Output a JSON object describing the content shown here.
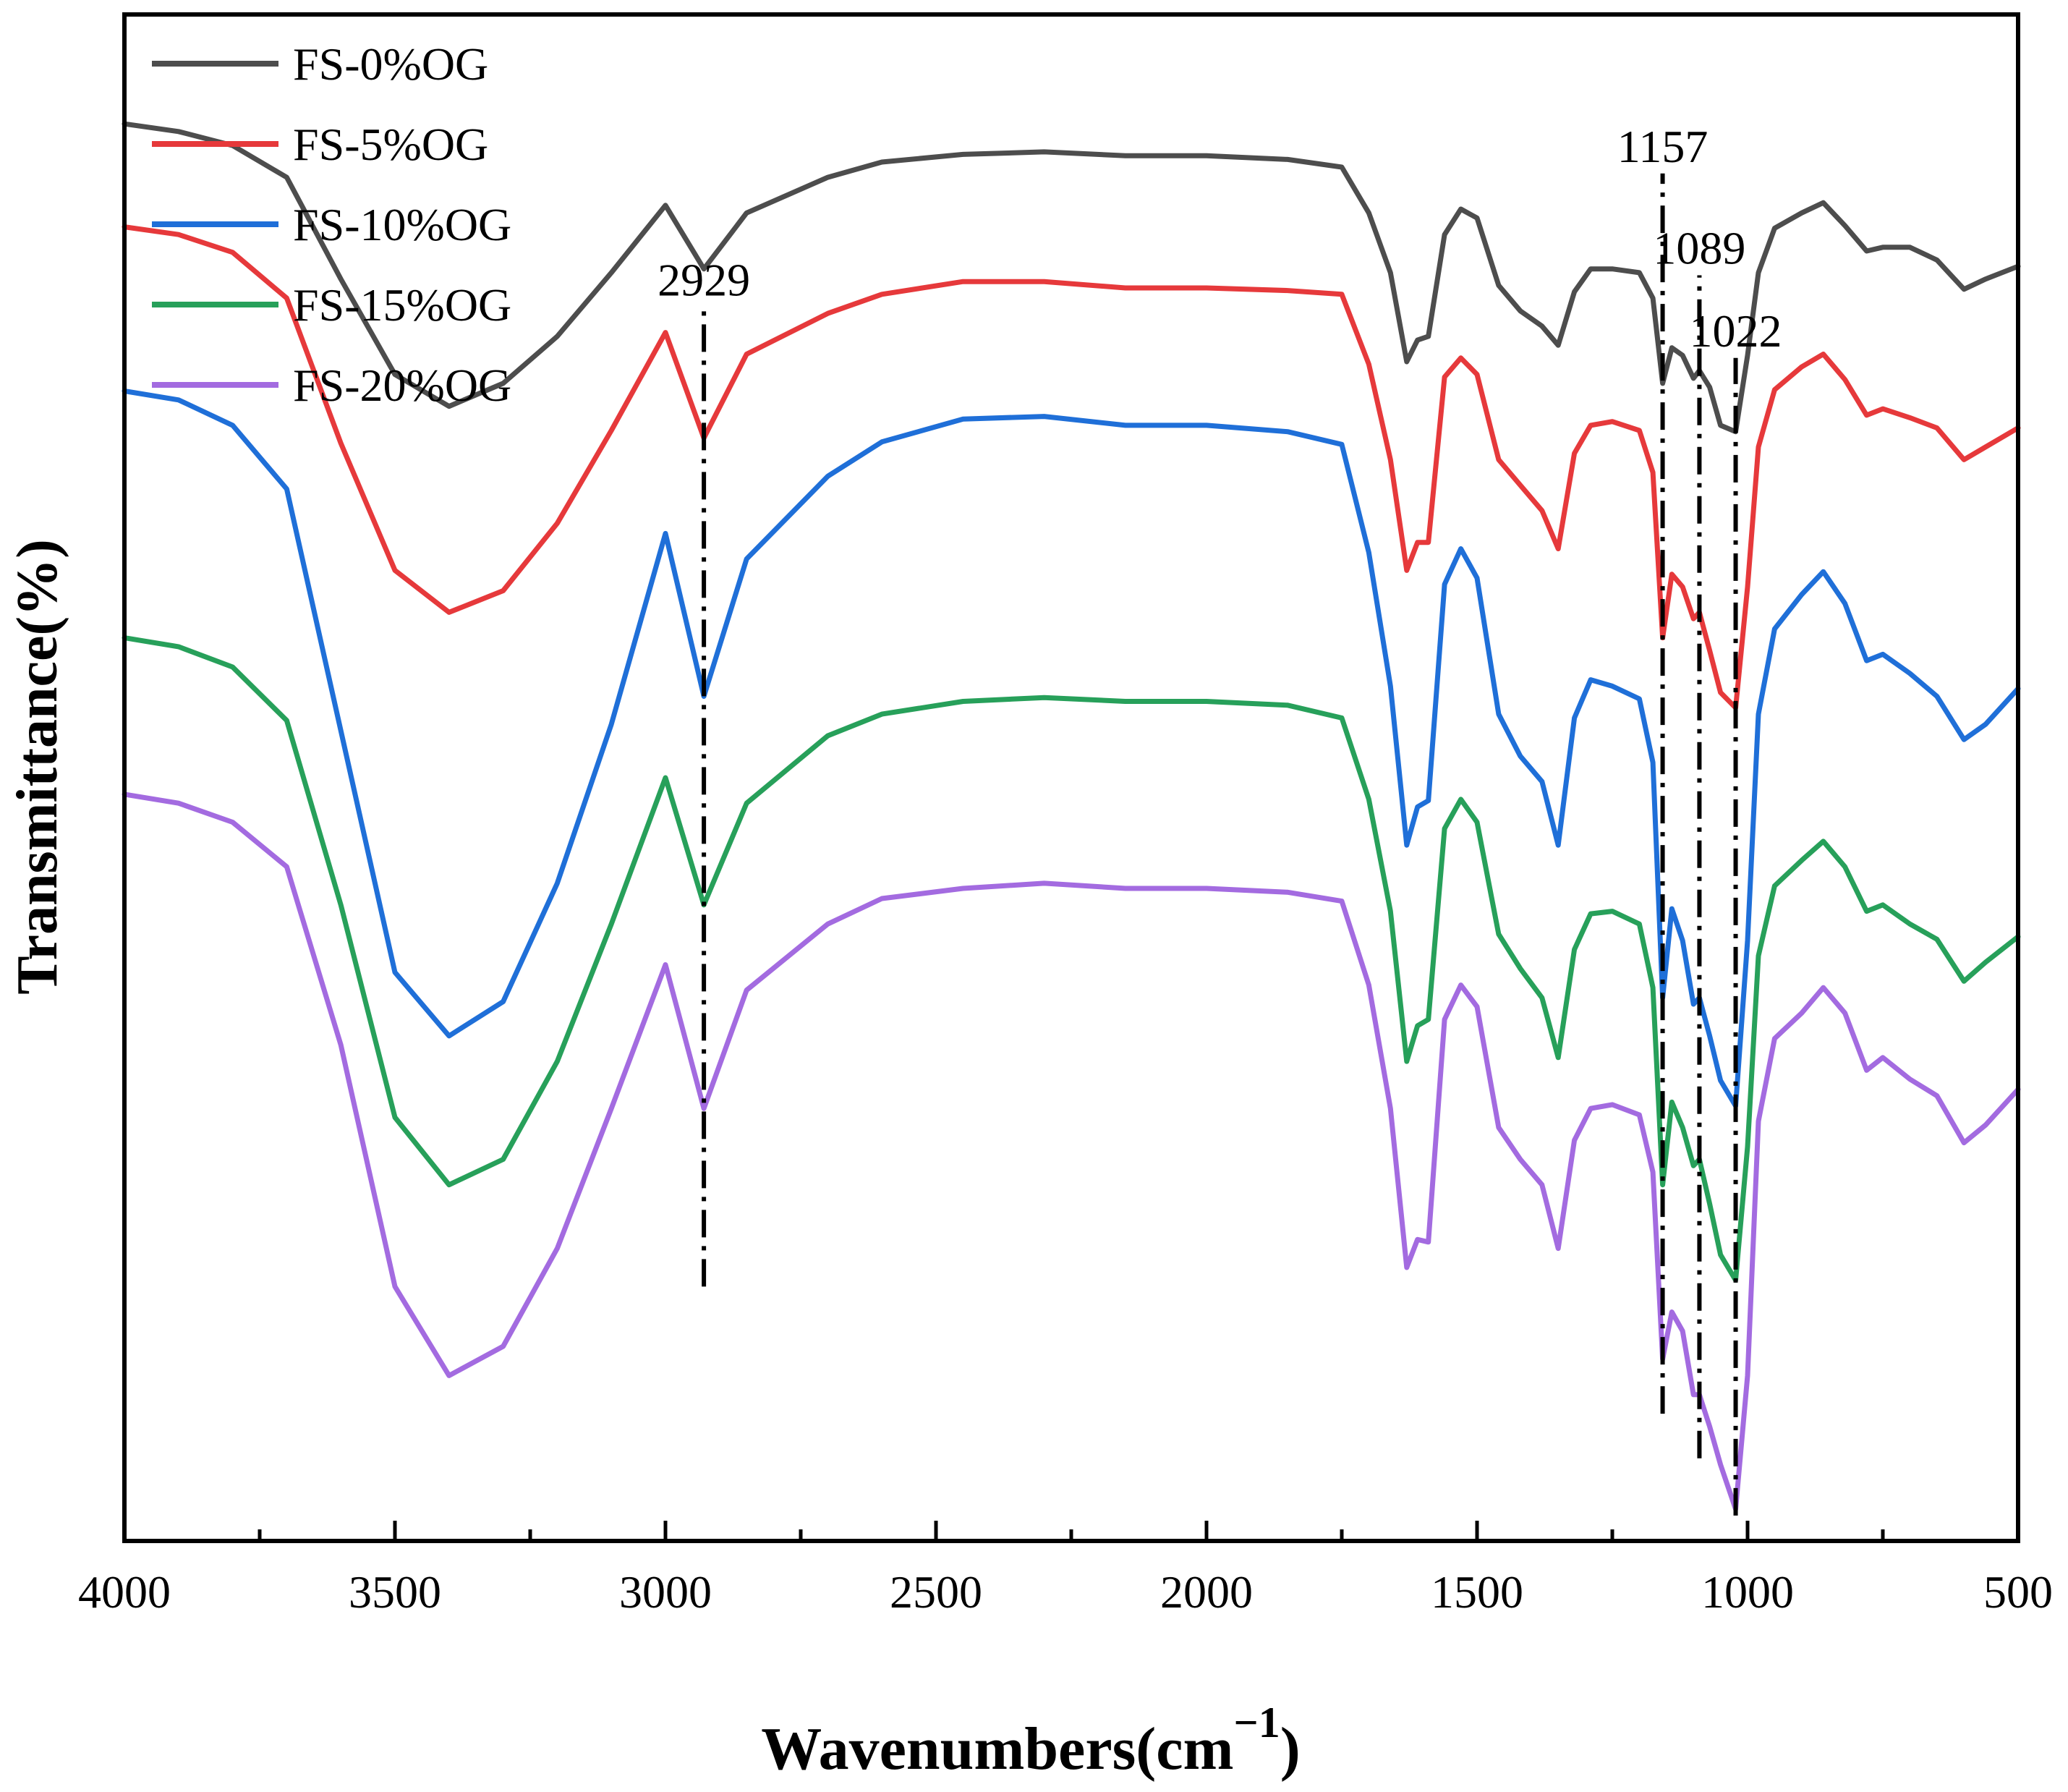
{
  "chart_data": {
    "type": "line",
    "xlabel": "Wavenumbers(cm",
    "xlabel_sup": "−1",
    "xlabel_close": ")",
    "ylabel": "Transmittance(%)",
    "xlim": [
      4000,
      500
    ],
    "x_reversed": true,
    "ylim": [
      0,
      12
    ],
    "x_major_ticks": [
      4000,
      3500,
      3000,
      2500,
      2000,
      1500,
      1000,
      500
    ],
    "x_minor_ticks": [
      3750,
      3250,
      2750,
      2250,
      1750,
      1250,
      750
    ],
    "y_ticks_shown": false,
    "grid": false,
    "legend_position": "top-left",
    "series": [
      {
        "name": "FS-0%OG",
        "color": "#4d4d4d",
        "offset": 8.72,
        "points": [
          [
            4000,
            2.42
          ],
          [
            3900,
            2.36
          ],
          [
            3800,
            2.25
          ],
          [
            3700,
            2.0
          ],
          [
            3600,
            1.2
          ],
          [
            3500,
            0.45
          ],
          [
            3400,
            0.2
          ],
          [
            3300,
            0.38
          ],
          [
            3200,
            0.75
          ],
          [
            3100,
            1.25
          ],
          [
            3000,
            1.78
          ],
          [
            2929,
            1.28
          ],
          [
            2850,
            1.72
          ],
          [
            2700,
            2.0
          ],
          [
            2600,
            2.12
          ],
          [
            2450,
            2.18
          ],
          [
            2300,
            2.2
          ],
          [
            2150,
            2.17
          ],
          [
            2000,
            2.17
          ],
          [
            1850,
            2.14
          ],
          [
            1750,
            2.08
          ],
          [
            1700,
            1.72
          ],
          [
            1660,
            1.25
          ],
          [
            1630,
            0.55
          ],
          [
            1610,
            0.72
          ],
          [
            1590,
            0.75
          ],
          [
            1560,
            1.55
          ],
          [
            1530,
            1.75
          ],
          [
            1500,
            1.68
          ],
          [
            1460,
            1.15
          ],
          [
            1420,
            0.95
          ],
          [
            1380,
            0.83
          ],
          [
            1350,
            0.68
          ],
          [
            1320,
            1.1
          ],
          [
            1290,
            1.28
          ],
          [
            1250,
            1.28
          ],
          [
            1200,
            1.25
          ],
          [
            1175,
            1.05
          ],
          [
            1157,
            0.38
          ],
          [
            1140,
            0.66
          ],
          [
            1120,
            0.6
          ],
          [
            1100,
            0.42
          ],
          [
            1089,
            0.48
          ],
          [
            1070,
            0.35
          ],
          [
            1050,
            0.05
          ],
          [
            1022,
            0.0
          ],
          [
            1000,
            0.6
          ],
          [
            980,
            1.25
          ],
          [
            950,
            1.6
          ],
          [
            900,
            1.72
          ],
          [
            860,
            1.8
          ],
          [
            820,
            1.62
          ],
          [
            780,
            1.42
          ],
          [
            750,
            1.45
          ],
          [
            700,
            1.45
          ],
          [
            650,
            1.35
          ],
          [
            600,
            1.12
          ],
          [
            560,
            1.2
          ],
          [
            500,
            1.3
          ]
        ]
      },
      {
        "name": "FS-5%OG",
        "color": "#e6393b",
        "offset": 6.55,
        "points": [
          [
            4000,
            3.78
          ],
          [
            3900,
            3.72
          ],
          [
            3800,
            3.58
          ],
          [
            3700,
            3.22
          ],
          [
            3600,
            2.08
          ],
          [
            3500,
            1.08
          ],
          [
            3400,
            0.75
          ],
          [
            3300,
            0.92
          ],
          [
            3200,
            1.45
          ],
          [
            3100,
            2.18
          ],
          [
            3000,
            2.95
          ],
          [
            2929,
            2.12
          ],
          [
            2850,
            2.78
          ],
          [
            2700,
            3.1
          ],
          [
            2600,
            3.25
          ],
          [
            2450,
            3.35
          ],
          [
            2300,
            3.35
          ],
          [
            2150,
            3.3
          ],
          [
            2000,
            3.3
          ],
          [
            1850,
            3.28
          ],
          [
            1750,
            3.25
          ],
          [
            1700,
            2.7
          ],
          [
            1660,
            1.95
          ],
          [
            1630,
            1.08
          ],
          [
            1610,
            1.3
          ],
          [
            1590,
            1.3
          ],
          [
            1560,
            2.6
          ],
          [
            1530,
            2.75
          ],
          [
            1500,
            2.62
          ],
          [
            1460,
            1.95
          ],
          [
            1420,
            1.75
          ],
          [
            1380,
            1.55
          ],
          [
            1350,
            1.25
          ],
          [
            1320,
            2.0
          ],
          [
            1290,
            2.22
          ],
          [
            1250,
            2.25
          ],
          [
            1200,
            2.18
          ],
          [
            1175,
            1.85
          ],
          [
            1157,
            0.55
          ],
          [
            1140,
            1.05
          ],
          [
            1120,
            0.95
          ],
          [
            1100,
            0.7
          ],
          [
            1089,
            0.75
          ],
          [
            1070,
            0.45
          ],
          [
            1050,
            0.12
          ],
          [
            1022,
            0.0
          ],
          [
            1000,
            0.95
          ],
          [
            980,
            2.05
          ],
          [
            950,
            2.5
          ],
          [
            900,
            2.68
          ],
          [
            860,
            2.78
          ],
          [
            820,
            2.58
          ],
          [
            780,
            2.3
          ],
          [
            750,
            2.35
          ],
          [
            700,
            2.28
          ],
          [
            650,
            2.2
          ],
          [
            600,
            1.95
          ],
          [
            560,
            2.05
          ],
          [
            500,
            2.2
          ]
        ]
      },
      {
        "name": "FS-10%OG",
        "color": "#1f6fd8",
        "offset": 3.42,
        "points": [
          [
            4000,
            5.62
          ],
          [
            3900,
            5.55
          ],
          [
            3800,
            5.35
          ],
          [
            3700,
            4.85
          ],
          [
            3600,
            2.95
          ],
          [
            3500,
            1.05
          ],
          [
            3400,
            0.55
          ],
          [
            3300,
            0.82
          ],
          [
            3200,
            1.75
          ],
          [
            3100,
            3.0
          ],
          [
            3000,
            4.5
          ],
          [
            2929,
            3.22
          ],
          [
            2850,
            4.3
          ],
          [
            2700,
            4.95
          ],
          [
            2600,
            5.22
          ],
          [
            2450,
            5.4
          ],
          [
            2300,
            5.42
          ],
          [
            2150,
            5.35
          ],
          [
            2000,
            5.35
          ],
          [
            1850,
            5.3
          ],
          [
            1750,
            5.2
          ],
          [
            1700,
            4.35
          ],
          [
            1660,
            3.3
          ],
          [
            1630,
            2.05
          ],
          [
            1610,
            2.35
          ],
          [
            1590,
            2.4
          ],
          [
            1560,
            4.1
          ],
          [
            1530,
            4.38
          ],
          [
            1500,
            4.15
          ],
          [
            1460,
            3.08
          ],
          [
            1420,
            2.75
          ],
          [
            1380,
            2.55
          ],
          [
            1350,
            2.05
          ],
          [
            1320,
            3.05
          ],
          [
            1290,
            3.35
          ],
          [
            1250,
            3.3
          ],
          [
            1200,
            3.2
          ],
          [
            1175,
            2.7
          ],
          [
            1157,
            0.85
          ],
          [
            1140,
            1.55
          ],
          [
            1120,
            1.3
          ],
          [
            1100,
            0.8
          ],
          [
            1089,
            0.85
          ],
          [
            1070,
            0.55
          ],
          [
            1050,
            0.2
          ],
          [
            1022,
            0.0
          ],
          [
            1000,
            1.3
          ],
          [
            980,
            3.08
          ],
          [
            950,
            3.75
          ],
          [
            900,
            4.02
          ],
          [
            860,
            4.2
          ],
          [
            820,
            3.95
          ],
          [
            780,
            3.5
          ],
          [
            750,
            3.55
          ],
          [
            700,
            3.4
          ],
          [
            650,
            3.22
          ],
          [
            600,
            2.88
          ],
          [
            560,
            3.0
          ],
          [
            500,
            3.28
          ]
        ]
      },
      {
        "name": "FS-15%OG",
        "color": "#27a05a",
        "offset": 2.05,
        "points": [
          [
            4000,
            5.05
          ],
          [
            3900,
            4.98
          ],
          [
            3800,
            4.82
          ],
          [
            3700,
            4.4
          ],
          [
            3600,
            2.95
          ],
          [
            3500,
            1.28
          ],
          [
            3400,
            0.75
          ],
          [
            3300,
            0.95
          ],
          [
            3200,
            1.72
          ],
          [
            3100,
            2.8
          ],
          [
            3000,
            3.95
          ],
          [
            2929,
            2.95
          ],
          [
            2850,
            3.75
          ],
          [
            2700,
            4.28
          ],
          [
            2600,
            4.45
          ],
          [
            2450,
            4.55
          ],
          [
            2300,
            4.58
          ],
          [
            2150,
            4.55
          ],
          [
            2000,
            4.55
          ],
          [
            1850,
            4.52
          ],
          [
            1750,
            4.42
          ],
          [
            1700,
            3.78
          ],
          [
            1660,
            2.9
          ],
          [
            1630,
            1.72
          ],
          [
            1610,
            2.0
          ],
          [
            1590,
            2.05
          ],
          [
            1560,
            3.55
          ],
          [
            1530,
            3.78
          ],
          [
            1500,
            3.6
          ],
          [
            1460,
            2.72
          ],
          [
            1420,
            2.45
          ],
          [
            1380,
            2.22
          ],
          [
            1350,
            1.75
          ],
          [
            1320,
            2.6
          ],
          [
            1290,
            2.88
          ],
          [
            1250,
            2.9
          ],
          [
            1200,
            2.8
          ],
          [
            1175,
            2.3
          ],
          [
            1157,
            0.75
          ],
          [
            1140,
            1.4
          ],
          [
            1120,
            1.2
          ],
          [
            1100,
            0.9
          ],
          [
            1089,
            0.95
          ],
          [
            1070,
            0.6
          ],
          [
            1050,
            0.2
          ],
          [
            1022,
            0.0
          ],
          [
            1000,
            1.05
          ],
          [
            980,
            2.55
          ],
          [
            950,
            3.1
          ],
          [
            900,
            3.3
          ],
          [
            860,
            3.45
          ],
          [
            820,
            3.25
          ],
          [
            780,
            2.9
          ],
          [
            750,
            2.95
          ],
          [
            700,
            2.8
          ],
          [
            650,
            2.68
          ],
          [
            600,
            2.35
          ],
          [
            560,
            2.5
          ],
          [
            500,
            2.7
          ]
        ]
      },
      {
        "name": "FS-20%OG",
        "color": "#a36be0",
        "offset": 0.25,
        "points": [
          [
            4000,
            5.62
          ],
          [
            3900,
            5.55
          ],
          [
            3800,
            5.4
          ],
          [
            3700,
            5.05
          ],
          [
            3600,
            3.65
          ],
          [
            3500,
            1.75
          ],
          [
            3400,
            1.05
          ],
          [
            3300,
            1.28
          ],
          [
            3200,
            2.05
          ],
          [
            3100,
            3.15
          ],
          [
            3000,
            4.28
          ],
          [
            2929,
            3.15
          ],
          [
            2850,
            4.08
          ],
          [
            2700,
            4.6
          ],
          [
            2600,
            4.8
          ],
          [
            2450,
            4.88
          ],
          [
            2300,
            4.92
          ],
          [
            2150,
            4.88
          ],
          [
            2000,
            4.88
          ],
          [
            1850,
            4.85
          ],
          [
            1750,
            4.78
          ],
          [
            1700,
            4.12
          ],
          [
            1660,
            3.15
          ],
          [
            1630,
            1.9
          ],
          [
            1610,
            2.12
          ],
          [
            1590,
            2.1
          ],
          [
            1560,
            3.85
          ],
          [
            1530,
            4.12
          ],
          [
            1500,
            3.95
          ],
          [
            1460,
            3.0
          ],
          [
            1420,
            2.75
          ],
          [
            1380,
            2.55
          ],
          [
            1350,
            2.05
          ],
          [
            1320,
            2.9
          ],
          [
            1290,
            3.15
          ],
          [
            1250,
            3.18
          ],
          [
            1200,
            3.1
          ],
          [
            1175,
            2.65
          ],
          [
            1157,
            1.18
          ],
          [
            1140,
            1.55
          ],
          [
            1120,
            1.4
          ],
          [
            1100,
            0.9
          ],
          [
            1089,
            0.9
          ],
          [
            1070,
            0.65
          ],
          [
            1050,
            0.35
          ],
          [
            1022,
            0.0
          ],
          [
            1000,
            1.05
          ],
          [
            980,
            3.05
          ],
          [
            950,
            3.7
          ],
          [
            900,
            3.9
          ],
          [
            860,
            4.1
          ],
          [
            820,
            3.9
          ],
          [
            780,
            3.45
          ],
          [
            750,
            3.55
          ],
          [
            700,
            3.38
          ],
          [
            650,
            3.25
          ],
          [
            600,
            2.88
          ],
          [
            560,
            3.02
          ],
          [
            500,
            3.3
          ]
        ]
      }
    ],
    "annotations": [
      {
        "label": "2929",
        "x": 2929,
        "y_from": 2.0,
        "y_to": 9.7
      },
      {
        "label": "1157",
        "x": 1157,
        "y_from": 1.0,
        "y_to": 10.75
      },
      {
        "label": "1089",
        "x": 1089,
        "y_from": 0.65,
        "y_to": 9.95
      },
      {
        "label": "1022",
        "x": 1022,
        "y_from": 0.2,
        "y_to": 9.3
      }
    ]
  }
}
